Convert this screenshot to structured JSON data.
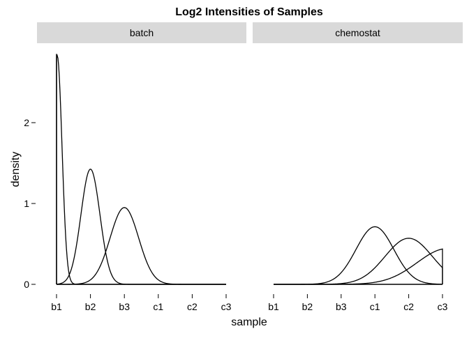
{
  "chart_data": {
    "type": "line",
    "title": "Log2 Intensities of Samples",
    "xlabel": "sample",
    "ylabel": "density",
    "x_categories": [
      "b1",
      "b2",
      "b3",
      "c1",
      "c2",
      "c3"
    ],
    "ylim": [
      0,
      2.85
    ],
    "y_ticks": [
      0,
      1,
      2
    ],
    "grid": false,
    "legend": "none",
    "panels": [
      {
        "label": "batch",
        "series": [
          {
            "mean": 1.02,
            "sd": 0.141,
            "values_note": "",
            "x": [],
            "y": []
          },
          {
            "mean": 2.0,
            "sd": 0.28,
            "x": [],
            "y": []
          },
          {
            "mean": 3.0,
            "sd": 0.42,
            "x": [],
            "y": []
          }
        ]
      },
      {
        "label": "chemostat",
        "series": [
          {
            "mean": 4.0,
            "sd": 0.56,
            "x": [],
            "y": []
          },
          {
            "mean": 5.0,
            "sd": 0.7,
            "x": [],
            "y": []
          },
          {
            "mean": 6.15,
            "sd": 0.9,
            "x": [],
            "y": []
          }
        ]
      }
    ],
    "colors": {
      "line": "#000000",
      "strip": "#d9d9d9",
      "axis": "#000000"
    }
  }
}
